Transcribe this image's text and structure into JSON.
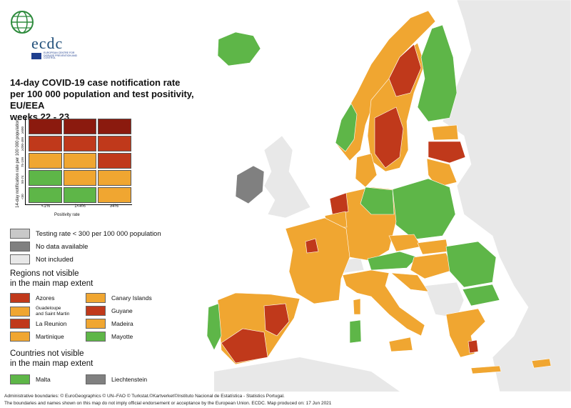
{
  "logo": {
    "text": "ecdc",
    "subtitle": "European Centre for Disease Prevention and Control"
  },
  "title_lines": [
    "14-day COVID-19 case notification rate",
    "per 100 000 population and test positivity, EU/EEA",
    "weeks 22 - 23"
  ],
  "matrix": {
    "y_label": "14-day notification rate per 100 000 population",
    "y_ticks": [
      "≥500",
      "≥200-499",
      "75-199",
      "50-74",
      "<50"
    ],
    "x_label": "Positivity rate",
    "x_ticks": [
      "<1%",
      "1<4%",
      "≥4%"
    ],
    "cells": [
      [
        "#8b1a0e",
        "#8b1a0e",
        "#8b1a0e"
      ],
      [
        "#c0391b",
        "#c0391b",
        "#c0391b"
      ],
      [
        "#f0a631",
        "#f0a631",
        "#c0391b"
      ],
      [
        "#5eb648",
        "#f0a631",
        "#f0a631"
      ],
      [
        "#5eb648",
        "#5eb648",
        "#f0a631"
      ]
    ]
  },
  "status_legend": [
    {
      "label": "Testing rate < 300 per 100 000 population",
      "color": "#c8c8c8"
    },
    {
      "label": "No data available",
      "color": "#808080"
    },
    {
      "label": "Not included",
      "color": "#e8e8e8"
    }
  ],
  "regions_heading": [
    "Regions not visible",
    "in the main map extent"
  ],
  "regions": [
    {
      "label": "Azores",
      "color": "#c0391b"
    },
    {
      "label": "Canary Islands",
      "color": "#f0a631"
    },
    {
      "label": "Guadeloupe\nand Saint Martin",
      "color": "#f0a631"
    },
    {
      "label": "Guyane",
      "color": "#c0391b"
    },
    {
      "label": "La Reunion",
      "color": "#c0391b"
    },
    {
      "label": "Madeira",
      "color": "#f0a631"
    },
    {
      "label": "Martinique",
      "color": "#f0a631"
    },
    {
      "label": "Mayotte",
      "color": "#5eb648"
    }
  ],
  "countries_heading": [
    "Countries not visible",
    "in the main map extent"
  ],
  "countries": [
    {
      "label": "Malta",
      "color": "#5eb648"
    },
    {
      "label": "Liechtenstein",
      "color": "#808080"
    }
  ],
  "footer": {
    "line1": "Administrative boundaries: © EuroGeographics © UN–FAO © Turkstat.©Kartverket©Instituto Nacional de Estatística - Statistics Portugal.",
    "line2": "The boundaries and names shown on this map do not imply official endorsement or acceptance by the European Union. ECDC. Map produced on: 17 Jun 2021"
  },
  "colors": {
    "dark_red": "#8b1a0e",
    "red": "#c0391b",
    "orange": "#f0a631",
    "green": "#5eb648",
    "no_data": "#808080",
    "not_included": "#e8e8e8"
  }
}
